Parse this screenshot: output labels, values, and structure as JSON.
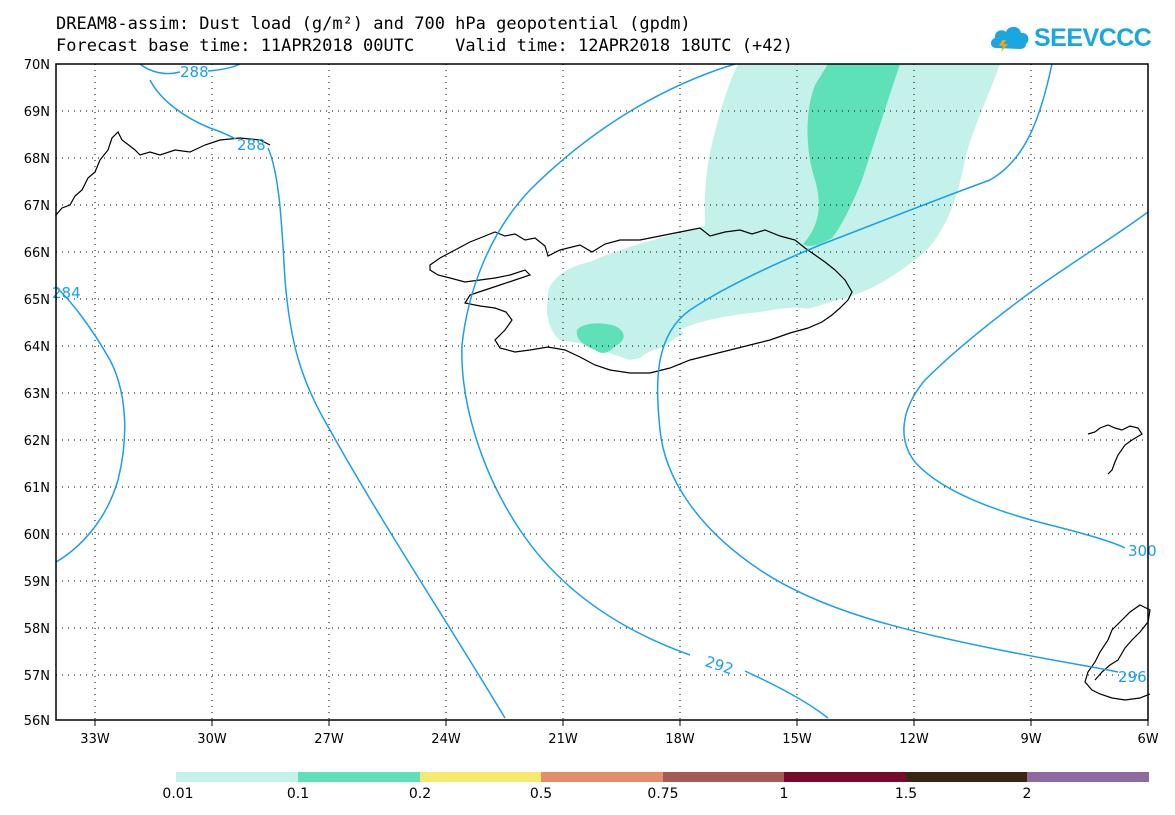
{
  "header": {
    "title_line1": "DREAM8-assim: Dust load (g/m²) and 700 hPa geopotential (gpdm)",
    "title_line2": "Forecast base time: 11APR2018 00UTC    Valid time: 12APR2018 18UTC (+42)"
  },
  "logo": {
    "text": "SEEVCCC",
    "icon": "cloud-icon",
    "color": "#1aa7e0"
  },
  "map": {
    "lat_labels": [
      "70N",
      "69N",
      "68N",
      "67N",
      "66N",
      "65N",
      "64N",
      "63N",
      "62N",
      "61N",
      "60N",
      "59N",
      "58N",
      "57N",
      "56N"
    ],
    "lon_labels": [
      "33W",
      "30W",
      "27W",
      "24W",
      "21W",
      "18W",
      "15W",
      "12W",
      "9W",
      "6W"
    ],
    "contour_labels": [
      "288",
      "288",
      "284",
      "292",
      "300",
      "296"
    ],
    "contour_color": "#1aa0ea",
    "coast_color": "#000000",
    "grid": "dotted"
  },
  "colorbar": {
    "labels": [
      "0.01",
      "0.1",
      "0.2",
      "0.5",
      "0.75",
      "1",
      "1.5",
      "2"
    ],
    "colors": [
      "#c4f2ea",
      "#5ee0b8",
      "#f5e96e",
      "#e58d68",
      "#a55a52",
      "#7a0a2c",
      "#3c2512",
      "#8f6aa0"
    ]
  }
}
